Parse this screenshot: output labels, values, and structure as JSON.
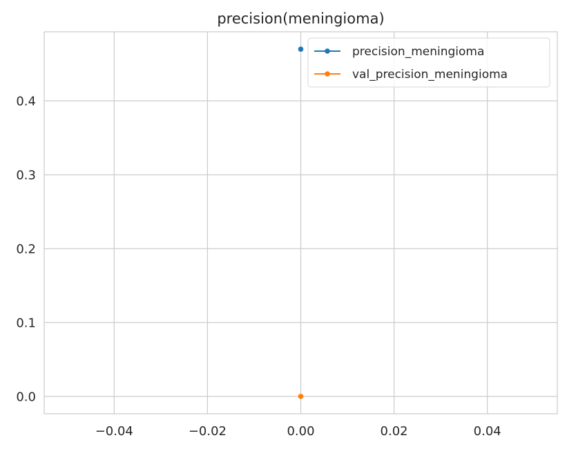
{
  "chart_data": {
    "type": "line",
    "title": "precision(meningioma)",
    "xlabel": "",
    "ylabel": "",
    "xlim": [
      -0.055,
      0.055
    ],
    "ylim": [
      -0.0235,
      0.4935
    ],
    "xticks": [
      -0.04,
      -0.02,
      0.0,
      0.02,
      0.04
    ],
    "xtick_labels": [
      "−0.04",
      "−0.02",
      "0.00",
      "0.02",
      "0.04"
    ],
    "yticks": [
      0.0,
      0.1,
      0.2,
      0.3,
      0.4
    ],
    "ytick_labels": [
      "0.0",
      "0.1",
      "0.2",
      "0.3",
      "0.4"
    ],
    "grid": true,
    "legend_position": "top-right",
    "series": [
      {
        "name": "precision_meningioma",
        "color": "#1f77b4",
        "x": [
          0
        ],
        "y": [
          0.47
        ]
      },
      {
        "name": "val_precision_meningioma",
        "color": "#ff7f0e",
        "x": [
          0
        ],
        "y": [
          0.0
        ]
      }
    ]
  }
}
